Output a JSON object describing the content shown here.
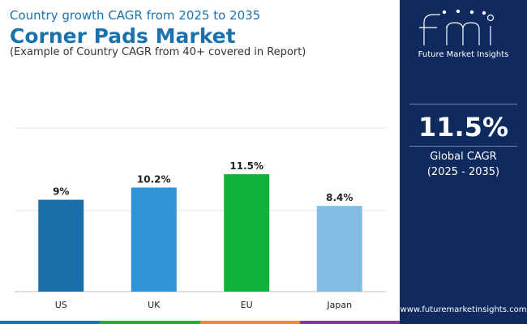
{
  "header": {
    "subtitle": "Country growth CAGR from 2025 to 2035",
    "title": "Corner Pads Market",
    "note": "(Example of Country CAGR from 40+ covered in Report)"
  },
  "chart_data": {
    "type": "bar",
    "title": "Corner Pads Market",
    "categories": [
      "US",
      "UK",
      "EU",
      "Japan"
    ],
    "values": [
      9,
      10.2,
      11.5,
      8.4
    ],
    "value_labels": [
      "9%",
      "10.2%",
      "11.5%",
      "8.4%"
    ],
    "bar_colors": [
      "#1a6fa8",
      "#2f93d8",
      "#0fb33a",
      "#84bde3"
    ],
    "ylim": [
      0,
      14
    ],
    "grid": true,
    "xlabel": "",
    "ylabel": ""
  },
  "panel": {
    "logo_text": "Future Market Insights",
    "value": "11.5%",
    "label": "Global CAGR",
    "period": "(2025 - 2035)",
    "website": "www.futuremarketinsights.com"
  },
  "colors": {
    "title": "#1a72ad",
    "panel_bg": "#0f2a5e",
    "stripe": [
      "#1a72ad",
      "#0fb33a",
      "#f08c1e",
      "#7a3a9a"
    ]
  }
}
